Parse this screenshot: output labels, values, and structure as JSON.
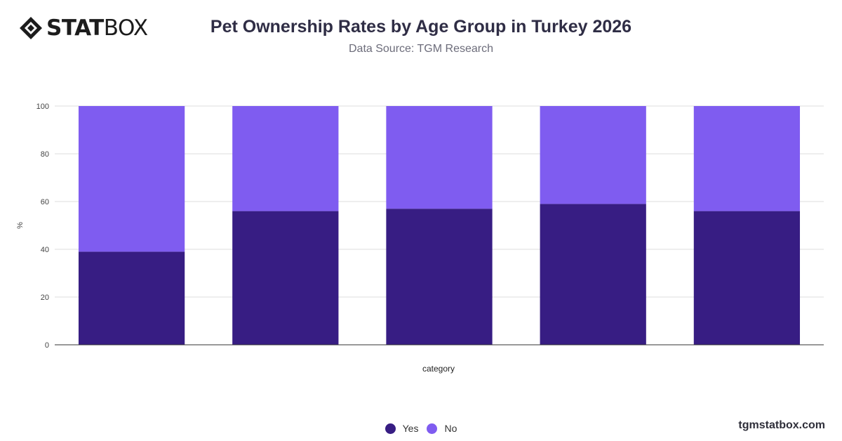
{
  "brand": {
    "bold": "STAT",
    "light": "BOX"
  },
  "header": {
    "title": "Pet Ownership Rates by Age Group in Turkey 2026",
    "subtitle": "Data Source: TGM Research"
  },
  "footer": {
    "site": "tgmstatbox.com"
  },
  "colors": {
    "yes": "#371d83",
    "no": "#7f5cf0",
    "grid": "#dedede",
    "axis": "#333333"
  },
  "chart_data": {
    "type": "bar",
    "stacked": true,
    "categories": [
      "",
      "",
      "",
      "",
      ""
    ],
    "series": [
      {
        "name": "Yes",
        "values": [
          39,
          56,
          57,
          59,
          56
        ]
      },
      {
        "name": "No",
        "values": [
          61,
          44,
          43,
          41,
          44
        ]
      }
    ],
    "title": "Pet Ownership Rates by Age Group in Turkey 2026",
    "subtitle": "Data Source: TGM Research",
    "xlabel": "category",
    "ylabel": "%",
    "ylim": [
      0,
      100
    ],
    "yticks": [
      0,
      20,
      40,
      60,
      80,
      100
    ],
    "grid": true,
    "legend": "bottom-center"
  }
}
